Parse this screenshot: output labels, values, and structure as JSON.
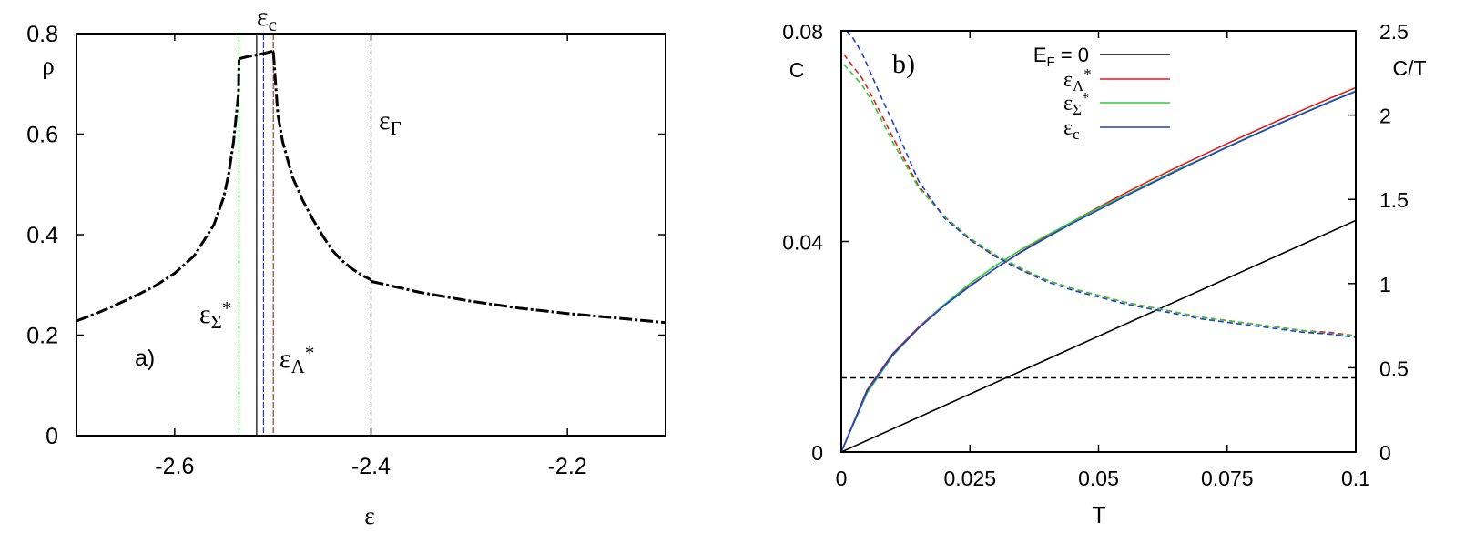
{
  "chart_data": [
    {
      "type": "line",
      "panel_label": "a)",
      "xlabel": "ε",
      "ylabel": "ρ",
      "xlim": [
        -2.7,
        -2.1
      ],
      "ylim": [
        0,
        0.8
      ],
      "xticks": [
        -2.6,
        -2.4,
        -2.2
      ],
      "xtick_labels": [
        "-2.6",
        "-2.4",
        "-2.2"
      ],
      "yticks": [
        0,
        0.2,
        0.4,
        0.6,
        0.8
      ],
      "ytick_labels": [
        "0",
        "0.2",
        "0.4",
        "0.6",
        "0.8"
      ],
      "series": [
        {
          "style": "dashed",
          "color": "#000000",
          "x": [
            -2.7,
            -2.68,
            -2.66,
            -2.64,
            -2.62,
            -2.6,
            -2.58,
            -2.56,
            -2.55,
            -2.545,
            -2.54,
            -2.535,
            -2.5345
          ],
          "y": [
            0.228,
            0.243,
            0.26,
            0.278,
            0.298,
            0.323,
            0.358,
            0.42,
            0.475,
            0.52,
            0.585,
            0.68,
            0.748
          ]
        },
        {
          "style": "dashed",
          "color": "#000000",
          "x": [
            -2.534,
            -2.526,
            -2.518,
            -2.51,
            -2.5
          ],
          "y": [
            0.75,
            0.754,
            0.757,
            0.76,
            0.765
          ]
        },
        {
          "style": "dashed",
          "color": "#000000",
          "x": [
            -2.4995,
            -2.495,
            -2.49,
            -2.48,
            -2.47,
            -2.46,
            -2.45,
            -2.44,
            -2.43,
            -2.42,
            -2.41,
            -2.4
          ],
          "y": [
            0.763,
            0.64,
            0.585,
            0.515,
            0.47,
            0.433,
            0.4,
            0.37,
            0.349,
            0.333,
            0.32,
            0.31
          ]
        },
        {
          "style": "dashed",
          "color": "#000000",
          "x": [
            -2.4,
            -2.35,
            -2.3,
            -2.25,
            -2.2,
            -2.15,
            -2.1
          ],
          "y": [
            0.307,
            0.285,
            0.268,
            0.254,
            0.243,
            0.234,
            0.225
          ]
        }
      ],
      "vlines": [
        {
          "x": -2.5345,
          "color": "#27b327",
          "label": "εΣ*"
        },
        {
          "x": -2.5165,
          "color": "#000000",
          "label": ""
        },
        {
          "x": -2.5095,
          "color": "#2a35c9",
          "label": "εc"
        },
        {
          "x": -2.4995,
          "color": "#b23030",
          "label": "εΛ*"
        },
        {
          "x": -2.4,
          "color": "#000000",
          "label": "εΓ"
        }
      ]
    },
    {
      "type": "line",
      "panel_label": "b)",
      "xlabel": "T",
      "ylabel": "C",
      "ylabel_right": "C/T",
      "xlim": [
        0,
        0.1
      ],
      "ylim": [
        0,
        0.08
      ],
      "ylim_right": [
        0,
        2.5
      ],
      "xticks": [
        0,
        0.025,
        0.05,
        0.075,
        0.1
      ],
      "xtick_labels": [
        "0",
        "0.025",
        "0.05",
        "0.075",
        "0.1"
      ],
      "yticks": [
        0,
        0.04,
        0.08
      ],
      "ytick_labels": [
        "0",
        "0.04",
        "0.08"
      ],
      "yticks_right": [
        0,
        0.5,
        1,
        1.5,
        2,
        2.5
      ],
      "ytick_labels_right": [
        "0",
        "0.5",
        "1",
        "1.5",
        "2",
        "2.5"
      ],
      "legend": {
        "placement": "top",
        "entries": [
          {
            "label": "EF = 0",
            "color": "#000000"
          },
          {
            "label": "εΛ*",
            "color": "#e41a1c"
          },
          {
            "label": "εΣ*",
            "color": "#33cc33"
          },
          {
            "label": "εc",
            "color": "#1f3fd6"
          }
        ]
      },
      "series": [
        {
          "name": "EF = 0",
          "quantity": "C",
          "axis": "left",
          "style": "solid",
          "color": "#000000",
          "x": [
            0,
            0.1
          ],
          "y": [
            0,
            0.044
          ]
        },
        {
          "name": "EF = 0",
          "quantity": "C/T",
          "axis": "right",
          "style": "dashed",
          "color": "#000000",
          "x": [
            0,
            0.1
          ],
          "y": [
            0.44,
            0.44
          ]
        },
        {
          "name": "εΛ*",
          "quantity": "C",
          "axis": "left",
          "style": "solid",
          "color": "#e41a1c",
          "x": [
            0,
            0.005,
            0.01,
            0.015,
            0.02,
            0.025,
            0.03,
            0.035,
            0.04,
            0.045,
            0.05,
            0.055,
            0.06,
            0.065,
            0.07,
            0.075,
            0.08,
            0.085,
            0.09,
            0.095,
            0.1
          ],
          "y": [
            0,
            0.0118,
            0.0187,
            0.0237,
            0.028,
            0.0316,
            0.0349,
            0.0381,
            0.041,
            0.0438,
            0.0465,
            0.0491,
            0.0516,
            0.054,
            0.0563,
            0.0586,
            0.0608,
            0.063,
            0.0651,
            0.0672,
            0.0692
          ]
        },
        {
          "name": "εΣ*",
          "quantity": "C",
          "axis": "left",
          "style": "solid",
          "color": "#33cc33",
          "x": [
            0,
            0.005,
            0.01,
            0.015,
            0.02,
            0.025,
            0.03,
            0.035,
            0.04,
            0.045,
            0.05,
            0.055,
            0.06,
            0.065,
            0.07,
            0.075,
            0.08,
            0.085,
            0.09,
            0.095,
            0.1
          ],
          "y": [
            0,
            0.0112,
            0.0183,
            0.0235,
            0.028,
            0.032,
            0.0354,
            0.0385,
            0.0412,
            0.0438,
            0.0463,
            0.0487,
            0.0511,
            0.0535,
            0.0557,
            0.058,
            0.0602,
            0.0624,
            0.0645,
            0.0666,
            0.0686
          ]
        },
        {
          "name": "εc",
          "quantity": "C",
          "axis": "left",
          "style": "solid",
          "color": "#1f3fd6",
          "x": [
            0,
            0.005,
            0.01,
            0.015,
            0.02,
            0.025,
            0.03,
            0.035,
            0.04,
            0.045,
            0.05,
            0.055,
            0.06,
            0.065,
            0.07,
            0.075,
            0.08,
            0.085,
            0.09,
            0.095,
            0.1
          ],
          "y": [
            0,
            0.0116,
            0.0185,
            0.0235,
            0.0278,
            0.0315,
            0.0349,
            0.038,
            0.0408,
            0.0435,
            0.046,
            0.0485,
            0.0509,
            0.0533,
            0.0556,
            0.0579,
            0.0601,
            0.0623,
            0.0644,
            0.0665,
            0.0685
          ]
        },
        {
          "name": "εΛ*",
          "quantity": "C/T",
          "axis": "right",
          "style": "dashed",
          "color": "#e41a1c",
          "x": [
            0.0005,
            0.002,
            0.004,
            0.006,
            0.008,
            0.01,
            0.015,
            0.02,
            0.025,
            0.03,
            0.035,
            0.04,
            0.045,
            0.05,
            0.055,
            0.06,
            0.065,
            0.07,
            0.075,
            0.08,
            0.085,
            0.09,
            0.095,
            0.1
          ],
          "y": [
            2.36,
            2.3,
            2.22,
            2.11,
            1.99,
            1.87,
            1.58,
            1.4,
            1.26,
            1.16,
            1.08,
            1.02,
            0.97,
            0.93,
            0.89,
            0.86,
            0.83,
            0.8,
            0.78,
            0.76,
            0.74,
            0.72,
            0.71,
            0.69
          ]
        },
        {
          "name": "εΣ*",
          "quantity": "C/T",
          "axis": "right",
          "style": "dashed",
          "color": "#33cc33",
          "x": [
            0.0005,
            0.002,
            0.004,
            0.006,
            0.008,
            0.01,
            0.015,
            0.02,
            0.025,
            0.03,
            0.035,
            0.04,
            0.045,
            0.05,
            0.055,
            0.06,
            0.065,
            0.07,
            0.075,
            0.08,
            0.085,
            0.09,
            0.095,
            0.1
          ],
          "y": [
            2.3,
            2.25,
            2.18,
            2.08,
            1.96,
            1.84,
            1.57,
            1.4,
            1.27,
            1.17,
            1.09,
            1.02,
            0.97,
            0.93,
            0.89,
            0.86,
            0.83,
            0.8,
            0.78,
            0.76,
            0.74,
            0.72,
            0.7,
            0.69
          ]
        },
        {
          "name": "εc",
          "quantity": "C/T",
          "axis": "right",
          "style": "dashed",
          "color": "#1f3fd6",
          "x": [
            0.001,
            0.002,
            0.004,
            0.006,
            0.008,
            0.01,
            0.015,
            0.02,
            0.025,
            0.03,
            0.035,
            0.04,
            0.045,
            0.05,
            0.055,
            0.06,
            0.065,
            0.07,
            0.075,
            0.08,
            0.085,
            0.09,
            0.095,
            0.1
          ],
          "y": [
            2.5,
            2.47,
            2.37,
            2.23,
            2.09,
            1.96,
            1.61,
            1.39,
            1.26,
            1.16,
            1.08,
            1.01,
            0.96,
            0.92,
            0.88,
            0.85,
            0.82,
            0.79,
            0.77,
            0.75,
            0.73,
            0.71,
            0.7,
            0.68
          ]
        }
      ]
    }
  ]
}
